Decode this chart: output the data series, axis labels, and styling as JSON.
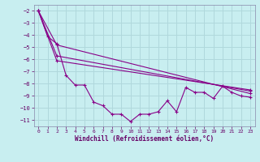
{
  "xlabel": "Windchill (Refroidissement éolien,°C)",
  "background_color": "#c8eef0",
  "grid_color": "#b0d8dc",
  "line_color": "#880088",
  "xlim": [
    -0.5,
    23.5
  ],
  "ylim": [
    -11.5,
    -1.5
  ],
  "yticks": [
    -2,
    -3,
    -4,
    -5,
    -6,
    -7,
    -8,
    -9,
    -10,
    -11
  ],
  "xticks": [
    0,
    1,
    2,
    3,
    4,
    5,
    6,
    7,
    8,
    9,
    10,
    11,
    12,
    13,
    14,
    15,
    16,
    17,
    18,
    19,
    20,
    21,
    22,
    23
  ],
  "series1_x": [
    0,
    1,
    2,
    3,
    4,
    5,
    6,
    7,
    8,
    9,
    10,
    11,
    12,
    13,
    14,
    15,
    16,
    17,
    18,
    19,
    20,
    21,
    22,
    23
  ],
  "series1_y": [
    -2.0,
    -4.1,
    -4.7,
    -7.3,
    -8.1,
    -8.1,
    -9.5,
    -9.8,
    -10.5,
    -10.5,
    -11.1,
    -10.5,
    -10.5,
    -10.3,
    -9.4,
    -10.3,
    -8.3,
    -8.7,
    -8.7,
    -9.2,
    -8.2,
    -8.7,
    -9.0,
    -9.1
  ],
  "series2_x": [
    0,
    2,
    23
  ],
  "series2_y": [
    -2.0,
    -4.8,
    -8.8
  ],
  "series3_x": [
    0,
    2,
    23
  ],
  "series3_y": [
    -2.0,
    -5.7,
    -8.6
  ],
  "series4_x": [
    0,
    2,
    23
  ],
  "series4_y": [
    -2.0,
    -6.1,
    -8.5
  ]
}
